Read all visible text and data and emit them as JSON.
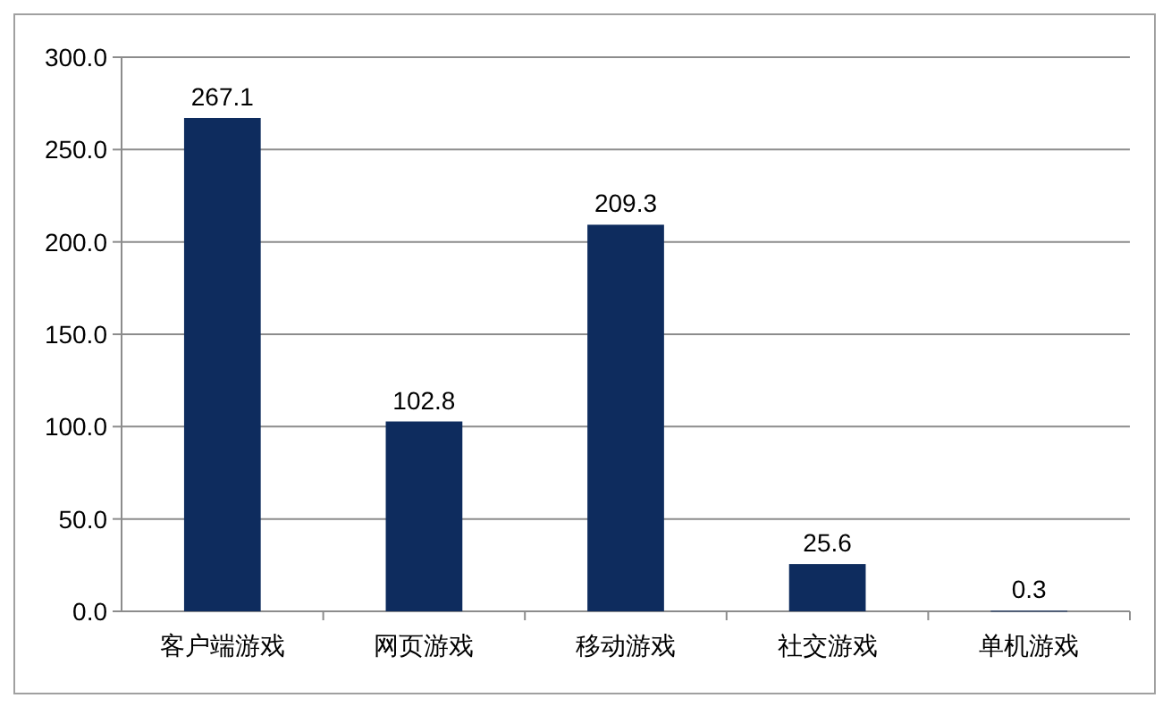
{
  "chart_data": {
    "type": "bar",
    "categories": [
      "客户端游戏",
      "网页游戏",
      "移动游戏",
      "社交游戏",
      "单机游戏"
    ],
    "values": [
      267.1,
      102.8,
      209.3,
      25.6,
      0.3
    ],
    "color": "#0e2c5e",
    "ylim": [
      0,
      300
    ],
    "yticks": [
      {
        "value": 0,
        "label": "0.0"
      },
      {
        "value": 50,
        "label": "50.0"
      },
      {
        "value": 100,
        "label": "100.0"
      },
      {
        "value": 150,
        "label": "150.0"
      },
      {
        "value": 200,
        "label": "200.0"
      },
      {
        "value": 250,
        "label": "250.0"
      },
      {
        "value": 300,
        "label": "300.0"
      }
    ],
    "grid": "y",
    "data_labels": true
  }
}
